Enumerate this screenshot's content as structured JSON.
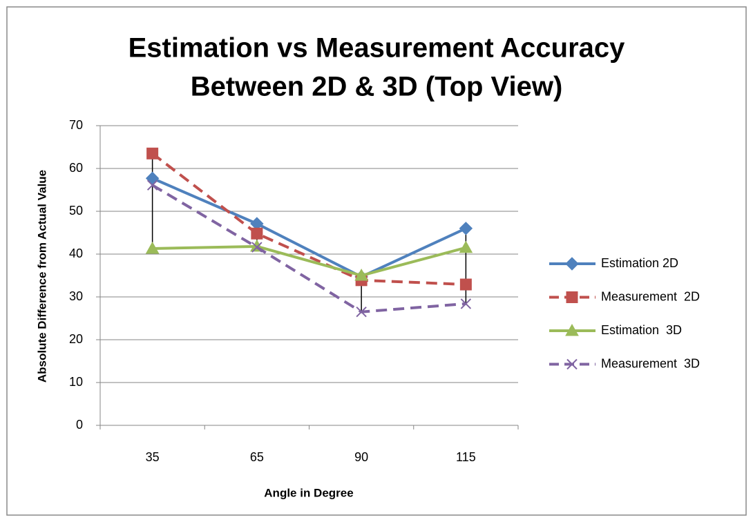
{
  "chart_data": {
    "type": "line",
    "title": [
      "Estimation vs Measurement Accuracy",
      "Between 2D & 3D (Top View)"
    ],
    "x_label": "Angle in Degree",
    "y_label": "Absolute Difference from Actual Value",
    "categories": [
      "35",
      "65",
      "90",
      "115"
    ],
    "series": [
      {
        "name": "Estimation 2D",
        "color": "#4f81bd",
        "marker": "diamond",
        "dashed": false,
        "values": [
          57.7,
          47.1,
          34.7,
          46.0
        ]
      },
      {
        "name": "Measurement  2D",
        "color": "#c0504d",
        "marker": "square",
        "dashed": true,
        "values": [
          63.5,
          44.8,
          33.9,
          32.9
        ]
      },
      {
        "name": "Estimation  3D",
        "color": "#9bbb59",
        "marker": "triangle",
        "dashed": false,
        "values": [
          41.3,
          41.8,
          35.0,
          41.5
        ]
      },
      {
        "name": "Measurement  3D",
        "color": "#8064a2",
        "marker": "x",
        "dashed": true,
        "values": [
          56.1,
          41.6,
          26.5,
          28.4
        ]
      }
    ],
    "ylim": [
      0,
      70
    ],
    "yticks": [
      0,
      10,
      20,
      30,
      40,
      50,
      60,
      70
    ],
    "grid": true,
    "high_low_lines": true,
    "legend": "right"
  }
}
